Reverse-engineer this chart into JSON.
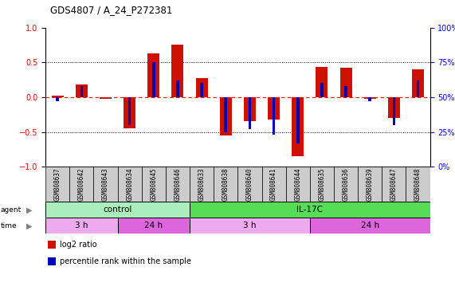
{
  "title": "GDS4807 / A_24_P272381",
  "samples": [
    "GSM808637",
    "GSM808642",
    "GSM808643",
    "GSM808634",
    "GSM808645",
    "GSM808646",
    "GSM808633",
    "GSM808638",
    "GSM808640",
    "GSM808641",
    "GSM808644",
    "GSM808635",
    "GSM808636",
    "GSM808639",
    "GSM808647",
    "GSM808648"
  ],
  "log2_ratio": [
    0.02,
    0.18,
    -0.02,
    -0.45,
    0.63,
    0.75,
    0.27,
    -0.55,
    -0.35,
    -0.32,
    -0.85,
    0.43,
    0.42,
    -0.02,
    -0.3,
    0.4
  ],
  "percentile_rank": [
    47,
    58,
    50,
    30,
    75,
    62,
    60,
    25,
    27,
    23,
    17,
    60,
    58,
    47,
    30,
    62
  ],
  "bar_color_red": "#cc1100",
  "bar_color_blue": "#0000bb",
  "agent_groups": [
    {
      "label": "control",
      "start": 0,
      "end": 6,
      "color": "#aaeebb"
    },
    {
      "label": "IL-17C",
      "start": 6,
      "end": 16,
      "color": "#55dd55"
    }
  ],
  "time_groups": [
    {
      "label": "3 h",
      "start": 0,
      "end": 3,
      "color": "#eeaaee"
    },
    {
      "label": "24 h",
      "start": 3,
      "end": 6,
      "color": "#dd66dd"
    },
    {
      "label": "3 h",
      "start": 6,
      "end": 11,
      "color": "#eeaaee"
    },
    {
      "label": "24 h",
      "start": 11,
      "end": 16,
      "color": "#dd66dd"
    }
  ],
  "ylim": [
    -1.0,
    1.0
  ],
  "yticks_left": [
    -1,
    -0.5,
    0,
    0.5,
    1
  ],
  "yticks_right": [
    0,
    25,
    50,
    75,
    100
  ],
  "legend_items": [
    {
      "label": "log2 ratio",
      "color": "#cc1100"
    },
    {
      "label": "percentile rank within the sample",
      "color": "#0000bb"
    }
  ],
  "background_color": "#ffffff",
  "plot_bg": "#ffffff"
}
